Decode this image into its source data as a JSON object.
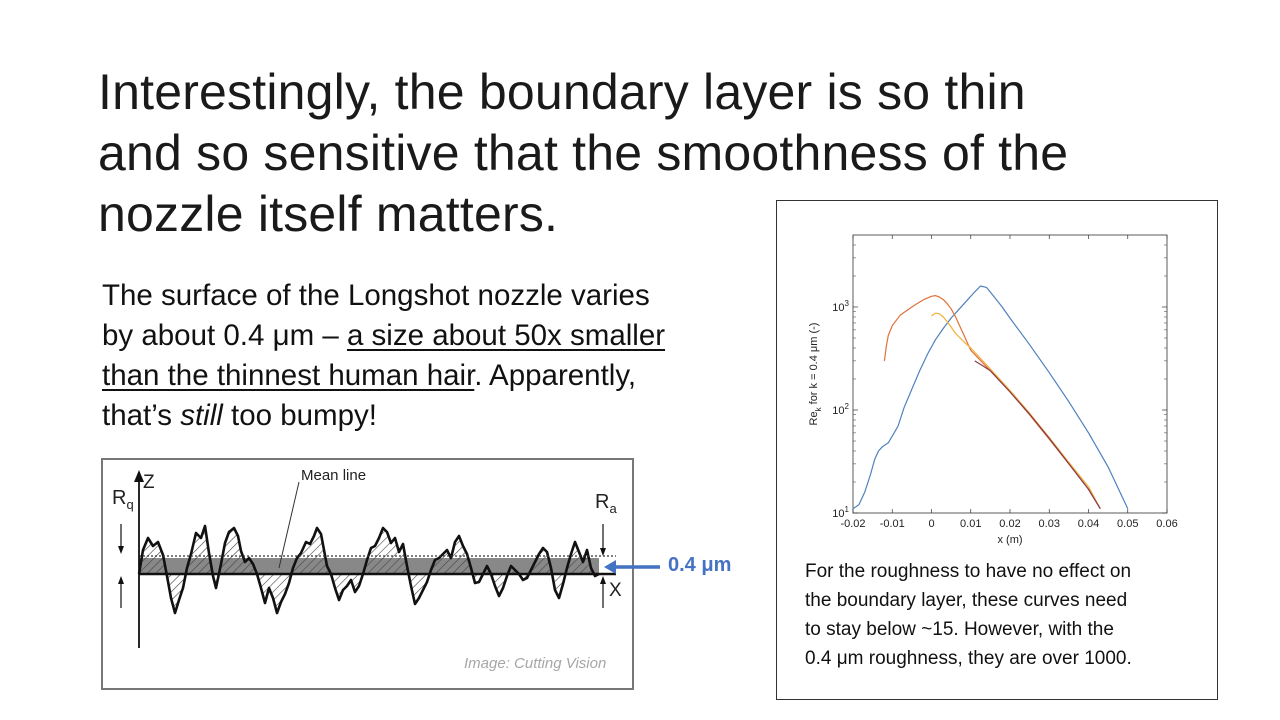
{
  "slide": {
    "title_lines": [
      "Interestingly, the boundary layer is so thin",
      "and so sensitive that the smoothness of the",
      "nozzle itself matters."
    ],
    "body": {
      "line1": "The surface of the Longshot nozzle varies",
      "line2_a": "by about 0.4 μm – ",
      "line2_b": "a size about 50x smaller",
      "line3_a": "than the thinnest human hair",
      "line3_b": ". Apparently,",
      "line4_a": "that’s ",
      "line4_b": "still",
      "line4_c": " too bumpy!"
    },
    "figure": {
      "mean_line_label": "Mean line",
      "z_label": "Z",
      "x_label": "X",
      "rq_main": "R",
      "rq_sub": "q",
      "ra_main": "R",
      "ra_sub": "a",
      "annotation": "0.4 μm",
      "credit": "Image: Cutting Vision",
      "accent_color": "#4472c4"
    },
    "caption_lines": [
      "For the roughness to have no effect on",
      "the boundary layer, these curves need",
      "to stay below ~15. However, with the",
      "0.4 μm roughness, they are over 1000."
    ]
  },
  "chart_data": {
    "type": "line",
    "title": "",
    "xlabel": "x (m)",
    "ylabel_main": "Re",
    "ylabel_sub": "k",
    "ylabel_rest": " for k = 0.4 μm (-)",
    "yscale": "log",
    "xlim": [
      -0.02,
      0.06
    ],
    "ylim": [
      10,
      5000
    ],
    "x_ticks": [
      "-0.02",
      "-0.01",
      "0",
      "0.01",
      "0.02",
      "0.03",
      "0.04",
      "0.05",
      "0.06"
    ],
    "y_ticks": [
      {
        "value": 10,
        "base": "10",
        "exp": "1"
      },
      {
        "value": 100,
        "base": "10",
        "exp": "2"
      },
      {
        "value": 1000,
        "base": "10",
        "exp": "3"
      }
    ],
    "grid": false,
    "series": [
      {
        "color": "#4f81bd",
        "x": [
          -0.02,
          -0.0185,
          -0.017,
          -0.0155,
          -0.0145,
          -0.0135,
          -0.0125,
          -0.011,
          -0.0095,
          -0.0085,
          -0.007,
          -0.005,
          -0.003,
          -0.001,
          0.001,
          0.003,
          0.005,
          0.007,
          0.009,
          0.011,
          0.0125,
          0.014,
          0.016,
          0.018,
          0.02,
          0.025,
          0.03,
          0.035,
          0.04,
          0.045,
          0.05
        ],
        "y": [
          11,
          12,
          16,
          24,
          33,
          40,
          44,
          48,
          60,
          70,
          105,
          160,
          240,
          350,
          480,
          620,
          780,
          950,
          1150,
          1400,
          1600,
          1550,
          1250,
          1000,
          780,
          430,
          230,
          120,
          60,
          28,
          11
        ]
      },
      {
        "color": "#e0703a",
        "x": [
          -0.012,
          -0.0115,
          -0.011,
          -0.01,
          -0.008,
          -0.006,
          -0.004,
          -0.002,
          0.0,
          0.001,
          0.002,
          0.003,
          0.004,
          0.005,
          0.006,
          0.008,
          0.01,
          0.015,
          0.02,
          0.025,
          0.03,
          0.035,
          0.04,
          0.043
        ],
        "y": [
          300,
          420,
          530,
          660,
          830,
          940,
          1060,
          1180,
          1270,
          1290,
          1250,
          1180,
          1080,
          960,
          820,
          560,
          380,
          240,
          150,
          90,
          52,
          30,
          17,
          11
        ]
      },
      {
        "color": "#f0b13a",
        "x": [
          0.0,
          0.001,
          0.002,
          0.003,
          0.004,
          0.005,
          0.006,
          0.008,
          0.01,
          0.015,
          0.02,
          0.025,
          0.03,
          0.035,
          0.04,
          0.043
        ],
        "y": [
          820,
          870,
          860,
          800,
          720,
          640,
          560,
          470,
          400,
          250,
          155,
          93,
          54,
          31,
          18,
          11
        ]
      },
      {
        "color": "#8a3a4a",
        "x": [
          0.011,
          0.013,
          0.015,
          0.02,
          0.025,
          0.03,
          0.035,
          0.04,
          0.043
        ],
        "y": [
          300,
          270,
          240,
          150,
          91,
          53,
          30,
          17,
          11
        ]
      }
    ]
  }
}
